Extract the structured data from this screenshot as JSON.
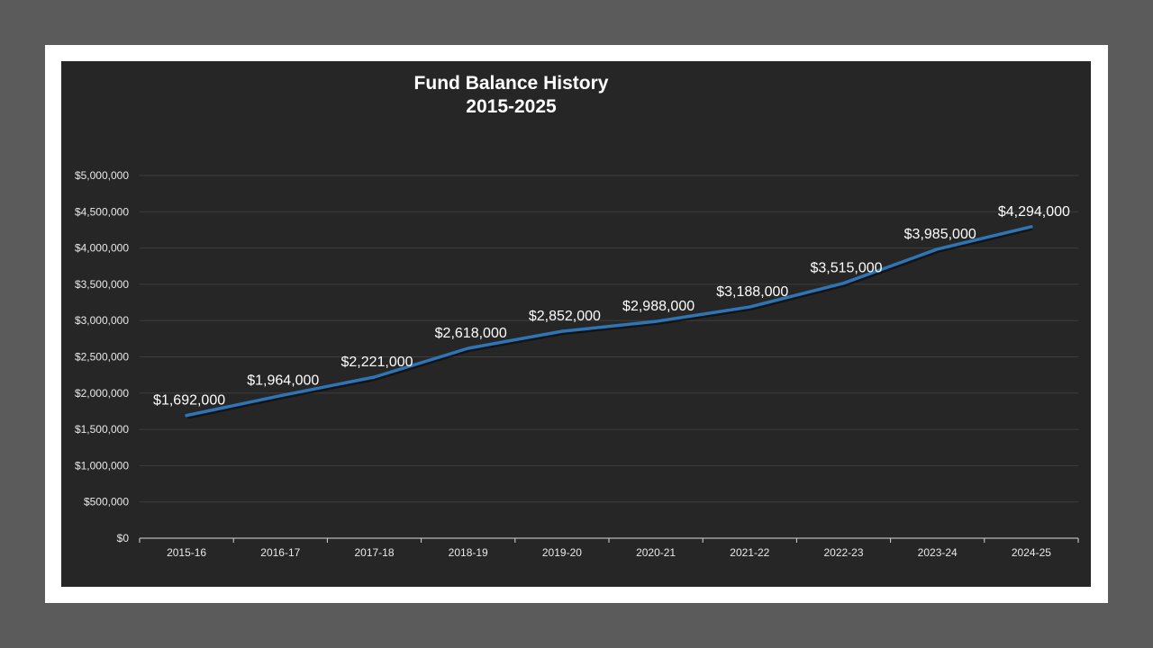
{
  "chart_data": {
    "type": "line",
    "title": "Fund Balance History",
    "subtitle": "2015-2025",
    "xlabel": "",
    "ylabel": "",
    "categories": [
      "2015-16",
      "2016-17",
      "2017-18",
      "2018-19",
      "2019-20",
      "2020-21",
      "2021-22",
      "2022-23",
      "2023-24",
      "2024-25"
    ],
    "series": [
      {
        "name": "Fund Balance",
        "values": [
          1692000,
          1964000,
          2221000,
          2618000,
          2852000,
          2988000,
          3188000,
          3515000,
          3985000,
          4294000
        ]
      }
    ],
    "data_labels": [
      "$1,692,000",
      "$1,964,000",
      "$2,221,000",
      "$2,618,000",
      "$2,852,000",
      "$2,988,000",
      "$3,188,000",
      "$3,515,000",
      "$3,985,000",
      "$4,294,000"
    ],
    "ylim": [
      0,
      5000000
    ],
    "y_ticks": [
      "$0",
      "$500,000",
      "$1,000,000",
      "$1,500,000",
      "$2,000,000",
      "$2,500,000",
      "$3,000,000",
      "$3,500,000",
      "$4,000,000",
      "$4,500,000",
      "$5,000,000"
    ],
    "grid": true,
    "legend": "none",
    "line_color": "#2e75b6"
  }
}
